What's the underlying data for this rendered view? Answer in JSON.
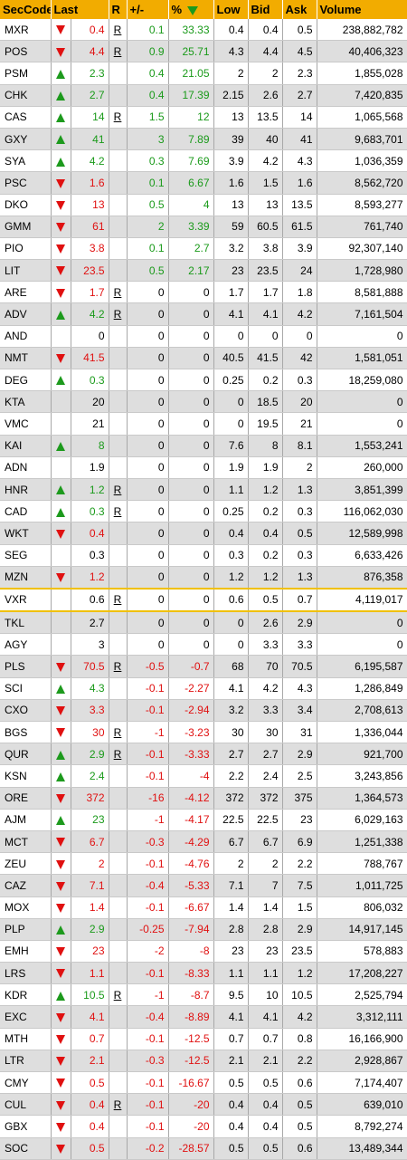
{
  "columns": {
    "seccode": "SecCode",
    "last": "Last",
    "r": "R",
    "change": "+/-",
    "pct": "%",
    "low": "Low",
    "bid": "Bid",
    "ask": "Ask",
    "volume": "Volume"
  },
  "sort_icon": "sort-descending-icon",
  "colors": {
    "header": "#f2ac00",
    "up": "#1a9a1a",
    "down": "#e01010",
    "selected_border": "#f0c000"
  },
  "rows": [
    {
      "code": "MXR",
      "dir": "down",
      "last": "0.4",
      "r": "R",
      "chg": "0.1",
      "pct": "33.33",
      "low": "0.4",
      "bid": "0.4",
      "ask": "0.5",
      "vol": "238,882,782"
    },
    {
      "code": "POS",
      "dir": "down",
      "last": "4.4",
      "r": "R",
      "chg": "0.9",
      "pct": "25.71",
      "low": "4.3",
      "bid": "4.4",
      "ask": "4.5",
      "vol": "40,406,323"
    },
    {
      "code": "PSM",
      "dir": "up",
      "last": "2.3",
      "r": "",
      "chg": "0.4",
      "pct": "21.05",
      "low": "2",
      "bid": "2",
      "ask": "2.3",
      "vol": "1,855,028"
    },
    {
      "code": "CHK",
      "dir": "up",
      "last": "2.7",
      "r": "",
      "chg": "0.4",
      "pct": "17.39",
      "low": "2.15",
      "bid": "2.6",
      "ask": "2.7",
      "vol": "7,420,835"
    },
    {
      "code": "CAS",
      "dir": "up",
      "last": "14",
      "r": "R",
      "chg": "1.5",
      "pct": "12",
      "low": "13",
      "bid": "13.5",
      "ask": "14",
      "vol": "1,065,568"
    },
    {
      "code": "GXY",
      "dir": "up",
      "last": "41",
      "r": "",
      "chg": "3",
      "pct": "7.89",
      "low": "39",
      "bid": "40",
      "ask": "41",
      "vol": "9,683,701"
    },
    {
      "code": "SYA",
      "dir": "up",
      "last": "4.2",
      "r": "",
      "chg": "0.3",
      "pct": "7.69",
      "low": "3.9",
      "bid": "4.2",
      "ask": "4.3",
      "vol": "1,036,359"
    },
    {
      "code": "PSC",
      "dir": "down",
      "last": "1.6",
      "r": "",
      "chg": "0.1",
      "pct": "6.67",
      "low": "1.6",
      "bid": "1.5",
      "ask": "1.6",
      "vol": "8,562,720"
    },
    {
      "code": "DKO",
      "dir": "down",
      "last": "13",
      "r": "",
      "chg": "0.5",
      "pct": "4",
      "low": "13",
      "bid": "13",
      "ask": "13.5",
      "vol": "8,593,277"
    },
    {
      "code": "GMM",
      "dir": "down",
      "last": "61",
      "r": "",
      "chg": "2",
      "pct": "3.39",
      "low": "59",
      "bid": "60.5",
      "ask": "61.5",
      "vol": "761,740"
    },
    {
      "code": "PIO",
      "dir": "down",
      "last": "3.8",
      "r": "",
      "chg": "0.1",
      "pct": "2.7",
      "low": "3.2",
      "bid": "3.8",
      "ask": "3.9",
      "vol": "92,307,140"
    },
    {
      "code": "LIT",
      "dir": "down",
      "last": "23.5",
      "r": "",
      "chg": "0.5",
      "pct": "2.17",
      "low": "23",
      "bid": "23.5",
      "ask": "24",
      "vol": "1,728,980"
    },
    {
      "code": "ARE",
      "dir": "down",
      "last": "1.7",
      "r": "R",
      "chg": "0",
      "pct": "0",
      "low": "1.7",
      "bid": "1.7",
      "ask": "1.8",
      "vol": "8,581,888"
    },
    {
      "code": "ADV",
      "dir": "up",
      "last": "4.2",
      "r": "R",
      "chg": "0",
      "pct": "0",
      "low": "4.1",
      "bid": "4.1",
      "ask": "4.2",
      "vol": "7,161,504"
    },
    {
      "code": "AND",
      "dir": "",
      "last": "0",
      "r": "",
      "chg": "0",
      "pct": "0",
      "low": "0",
      "bid": "0",
      "ask": "0",
      "vol": "0"
    },
    {
      "code": "NMT",
      "dir": "down",
      "last": "41.5",
      "r": "",
      "chg": "0",
      "pct": "0",
      "low": "40.5",
      "bid": "41.5",
      "ask": "42",
      "vol": "1,581,051"
    },
    {
      "code": "DEG",
      "dir": "up",
      "last": "0.3",
      "r": "",
      "chg": "0",
      "pct": "0",
      "low": "0.25",
      "bid": "0.2",
      "ask": "0.3",
      "vol": "18,259,080"
    },
    {
      "code": "KTA",
      "dir": "",
      "last": "20",
      "r": "",
      "chg": "0",
      "pct": "0",
      "low": "0",
      "bid": "18.5",
      "ask": "20",
      "vol": "0"
    },
    {
      "code": "VMC",
      "dir": "",
      "last": "21",
      "r": "",
      "chg": "0",
      "pct": "0",
      "low": "0",
      "bid": "19.5",
      "ask": "21",
      "vol": "0"
    },
    {
      "code": "KAI",
      "dir": "up",
      "last": "8",
      "r": "",
      "chg": "0",
      "pct": "0",
      "low": "7.6",
      "bid": "8",
      "ask": "8.1",
      "vol": "1,553,241"
    },
    {
      "code": "ADN",
      "dir": "",
      "last": "1.9",
      "r": "",
      "chg": "0",
      "pct": "0",
      "low": "1.9",
      "bid": "1.9",
      "ask": "2",
      "vol": "260,000"
    },
    {
      "code": "HNR",
      "dir": "up",
      "last": "1.2",
      "r": "R",
      "chg": "0",
      "pct": "0",
      "low": "1.1",
      "bid": "1.2",
      "ask": "1.3",
      "vol": "3,851,399"
    },
    {
      "code": "CAD",
      "dir": "up",
      "last": "0.3",
      "r": "R",
      "chg": "0",
      "pct": "0",
      "low": "0.25",
      "bid": "0.2",
      "ask": "0.3",
      "vol": "116,062,030"
    },
    {
      "code": "WKT",
      "dir": "down",
      "last": "0.4",
      "r": "",
      "chg": "0",
      "pct": "0",
      "low": "0.4",
      "bid": "0.4",
      "ask": "0.5",
      "vol": "12,589,998"
    },
    {
      "code": "SEG",
      "dir": "",
      "last": "0.3",
      "r": "",
      "chg": "0",
      "pct": "0",
      "low": "0.3",
      "bid": "0.2",
      "ask": "0.3",
      "vol": "6,633,426"
    },
    {
      "code": "MZN",
      "dir": "down",
      "last": "1.2",
      "r": "",
      "chg": "0",
      "pct": "0",
      "low": "1.2",
      "bid": "1.2",
      "ask": "1.3",
      "vol": "876,358"
    },
    {
      "code": "VXR",
      "dir": "",
      "last": "0.6",
      "r": "R",
      "chg": "0",
      "pct": "0",
      "low": "0.6",
      "bid": "0.5",
      "ask": "0.7",
      "vol": "4,119,017",
      "selected": true
    },
    {
      "code": "TKL",
      "dir": "",
      "last": "2.7",
      "r": "",
      "chg": "0",
      "pct": "0",
      "low": "0",
      "bid": "2.6",
      "ask": "2.9",
      "vol": "0"
    },
    {
      "code": "AGY",
      "dir": "",
      "last": "3",
      "r": "",
      "chg": "0",
      "pct": "0",
      "low": "0",
      "bid": "3.3",
      "ask": "3.3",
      "vol": "0"
    },
    {
      "code": "PLS",
      "dir": "down",
      "last": "70.5",
      "r": "R",
      "chg": "-0.5",
      "pct": "-0.7",
      "low": "68",
      "bid": "70",
      "ask": "70.5",
      "vol": "6,195,587"
    },
    {
      "code": "SCI",
      "dir": "up",
      "last": "4.3",
      "r": "",
      "chg": "-0.1",
      "pct": "-2.27",
      "low": "4.1",
      "bid": "4.2",
      "ask": "4.3",
      "vol": "1,286,849"
    },
    {
      "code": "CXO",
      "dir": "down",
      "last": "3.3",
      "r": "",
      "chg": "-0.1",
      "pct": "-2.94",
      "low": "3.2",
      "bid": "3.3",
      "ask": "3.4",
      "vol": "2,708,613"
    },
    {
      "code": "BGS",
      "dir": "down",
      "last": "30",
      "r": "R",
      "chg": "-1",
      "pct": "-3.23",
      "low": "30",
      "bid": "30",
      "ask": "31",
      "vol": "1,336,044"
    },
    {
      "code": "QUR",
      "dir": "up",
      "last": "2.9",
      "r": "R",
      "chg": "-0.1",
      "pct": "-3.33",
      "low": "2.7",
      "bid": "2.7",
      "ask": "2.9",
      "vol": "921,700"
    },
    {
      "code": "KSN",
      "dir": "up",
      "last": "2.4",
      "r": "",
      "chg": "-0.1",
      "pct": "-4",
      "low": "2.2",
      "bid": "2.4",
      "ask": "2.5",
      "vol": "3,243,856"
    },
    {
      "code": "ORE",
      "dir": "down",
      "last": "372",
      "r": "",
      "chg": "-16",
      "pct": "-4.12",
      "low": "372",
      "bid": "372",
      "ask": "375",
      "vol": "1,364,573"
    },
    {
      "code": "AJM",
      "dir": "up",
      "last": "23",
      "r": "",
      "chg": "-1",
      "pct": "-4.17",
      "low": "22.5",
      "bid": "22.5",
      "ask": "23",
      "vol": "6,029,163"
    },
    {
      "code": "MCT",
      "dir": "down",
      "last": "6.7",
      "r": "",
      "chg": "-0.3",
      "pct": "-4.29",
      "low": "6.7",
      "bid": "6.7",
      "ask": "6.9",
      "vol": "1,251,338"
    },
    {
      "code": "ZEU",
      "dir": "down",
      "last": "2",
      "r": "",
      "chg": "-0.1",
      "pct": "-4.76",
      "low": "2",
      "bid": "2",
      "ask": "2.2",
      "vol": "788,767"
    },
    {
      "code": "CAZ",
      "dir": "down",
      "last": "7.1",
      "r": "",
      "chg": "-0.4",
      "pct": "-5.33",
      "low": "7.1",
      "bid": "7",
      "ask": "7.5",
      "vol": "1,011,725"
    },
    {
      "code": "MOX",
      "dir": "down",
      "last": "1.4",
      "r": "",
      "chg": "-0.1",
      "pct": "-6.67",
      "low": "1.4",
      "bid": "1.4",
      "ask": "1.5",
      "vol": "806,032"
    },
    {
      "code": "PLP",
      "dir": "up",
      "last": "2.9",
      "r": "",
      "chg": "-0.25",
      "pct": "-7.94",
      "low": "2.8",
      "bid": "2.8",
      "ask": "2.9",
      "vol": "14,917,145"
    },
    {
      "code": "EMH",
      "dir": "down",
      "last": "23",
      "r": "",
      "chg": "-2",
      "pct": "-8",
      "low": "23",
      "bid": "23",
      "ask": "23.5",
      "vol": "578,883"
    },
    {
      "code": "LRS",
      "dir": "down",
      "last": "1.1",
      "r": "",
      "chg": "-0.1",
      "pct": "-8.33",
      "low": "1.1",
      "bid": "1.1",
      "ask": "1.2",
      "vol": "17,208,227"
    },
    {
      "code": "KDR",
      "dir": "up",
      "last": "10.5",
      "r": "R",
      "chg": "-1",
      "pct": "-8.7",
      "low": "9.5",
      "bid": "10",
      "ask": "10.5",
      "vol": "2,525,794"
    },
    {
      "code": "EXC",
      "dir": "down",
      "last": "4.1",
      "r": "",
      "chg": "-0.4",
      "pct": "-8.89",
      "low": "4.1",
      "bid": "4.1",
      "ask": "4.2",
      "vol": "3,312,111"
    },
    {
      "code": "MTH",
      "dir": "down",
      "last": "0.7",
      "r": "",
      "chg": "-0.1",
      "pct": "-12.5",
      "low": "0.7",
      "bid": "0.7",
      "ask": "0.8",
      "vol": "16,166,900"
    },
    {
      "code": "LTR",
      "dir": "down",
      "last": "2.1",
      "r": "",
      "chg": "-0.3",
      "pct": "-12.5",
      "low": "2.1",
      "bid": "2.1",
      "ask": "2.2",
      "vol": "2,928,867"
    },
    {
      "code": "CMY",
      "dir": "down",
      "last": "0.5",
      "r": "",
      "chg": "-0.1",
      "pct": "-16.67",
      "low": "0.5",
      "bid": "0.5",
      "ask": "0.6",
      "vol": "7,174,407"
    },
    {
      "code": "CUL",
      "dir": "down",
      "last": "0.4",
      "r": "R",
      "chg": "-0.1",
      "pct": "-20",
      "low": "0.4",
      "bid": "0.4",
      "ask": "0.5",
      "vol": "639,010"
    },
    {
      "code": "GBX",
      "dir": "down",
      "last": "0.4",
      "r": "",
      "chg": "-0.1",
      "pct": "-20",
      "low": "0.4",
      "bid": "0.4",
      "ask": "0.5",
      "vol": "8,792,274"
    },
    {
      "code": "SOC",
      "dir": "down",
      "last": "0.5",
      "r": "",
      "chg": "-0.2",
      "pct": "-28.57",
      "low": "0.5",
      "bid": "0.5",
      "ask": "0.6",
      "vol": "13,489,344"
    }
  ]
}
